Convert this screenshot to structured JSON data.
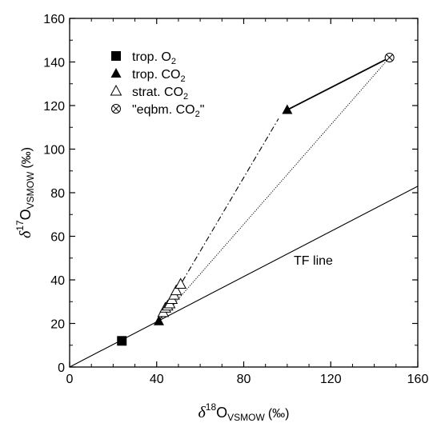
{
  "chart_data": {
    "type": "scatter",
    "xlabel": {
      "symbol": "δ",
      "sup": "18",
      "main": "O",
      "sub": "VSMOW",
      "unit": "(‰)"
    },
    "ylabel": {
      "symbol": "δ",
      "sup": "17",
      "main": "O",
      "sub": "VSMOW",
      "unit": "(‰)"
    },
    "xlim": [
      0,
      160
    ],
    "ylim": [
      0,
      160
    ],
    "xticks": [
      0,
      40,
      80,
      120,
      160
    ],
    "yticks": [
      0,
      20,
      40,
      60,
      80,
      100,
      120,
      140,
      160
    ],
    "xtick_labels": [
      "0",
      "40",
      "80",
      "120",
      "160"
    ],
    "ytick_labels": [
      "0",
      "20",
      "40",
      "60",
      "80",
      "100",
      "120",
      "140",
      "160"
    ],
    "grid": false,
    "legend_position": "top-left",
    "legend": [
      {
        "marker": "filled-square",
        "label": "trop. O",
        "sub": "2",
        "after": ""
      },
      {
        "marker": "filled-triangle",
        "label": "trop. CO",
        "sub": "2",
        "after": ""
      },
      {
        "marker": "open-triangle",
        "label": "strat. CO",
        "sub": "2",
        "after": ""
      },
      {
        "marker": "circled-x",
        "label": "\"eqbm. CO",
        "sub": "2",
        "after": "\""
      }
    ],
    "series": [
      {
        "name": "trop. O2",
        "marker": "filled-square",
        "points": [
          [
            24,
            12
          ]
        ]
      },
      {
        "name": "trop. CO2",
        "marker": "filled-triangle",
        "points": [
          [
            41,
            21
          ],
          [
            100,
            118
          ]
        ]
      },
      {
        "name": "strat. CO2",
        "marker": "open-triangle",
        "points": [
          [
            43,
            25
          ],
          [
            44,
            27
          ],
          [
            45,
            28
          ],
          [
            46,
            29
          ],
          [
            47,
            31
          ],
          [
            48,
            33
          ],
          [
            49,
            35
          ],
          [
            51,
            38
          ]
        ]
      },
      {
        "name": "\"eqbm. CO2\"",
        "marker": "circled-x",
        "points": [
          [
            147,
            142
          ]
        ]
      }
    ],
    "lines": [
      {
        "style": "solid",
        "points": [
          [
            0,
            0
          ],
          [
            160,
            83
          ]
        ]
      },
      {
        "style": "dotted",
        "points": [
          [
            41,
            21
          ],
          [
            147,
            142
          ]
        ]
      },
      {
        "style": "dash-dot",
        "points": [
          [
            41,
            21
          ],
          [
            96,
            114
          ]
        ]
      },
      {
        "style": "solid-arrow",
        "points": [
          [
            147,
            142
          ],
          [
            100,
            118
          ]
        ]
      }
    ],
    "annotations": [
      {
        "text": "TF line",
        "x": 103,
        "y": 47
      }
    ]
  }
}
